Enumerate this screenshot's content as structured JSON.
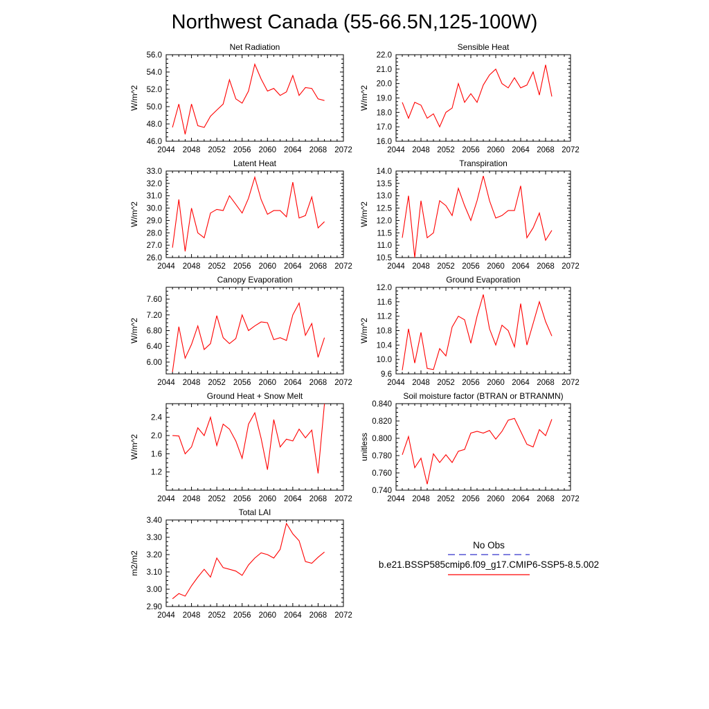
{
  "figure": {
    "title": "Northwest Canada (55-66.5N,125-100W)"
  },
  "legend": {
    "entries": [
      {
        "label": "No Obs",
        "color": "#3333cc",
        "dash": true
      },
      {
        "label": "b.e21.BSSP585cmip6.f09_g17.CMIP6-SSP5-8.5.002",
        "color": "#ff0000",
        "dash": false
      }
    ]
  },
  "chart_data": [
    {
      "type": "line",
      "title": "Net Radiation",
      "ylabel": "W/m^2",
      "xlim": [
        2044,
        2072
      ],
      "ylim": [
        46,
        56
      ],
      "xticks": [
        "2044",
        "2048",
        "2052",
        "2056",
        "2060",
        "2064",
        "2068",
        "2072"
      ],
      "yticks": [
        "46.0",
        "48.0",
        "50.0",
        "52.0",
        "54.0",
        "56.0"
      ],
      "x": [
        2045,
        2046,
        2047,
        2048,
        2049,
        2050,
        2051,
        2052,
        2053,
        2054,
        2055,
        2056,
        2057,
        2058,
        2059,
        2060,
        2061,
        2062,
        2063,
        2064,
        2065,
        2066,
        2067,
        2068,
        2069
      ],
      "series": [
        {
          "name": "b.e21.BSSP585cmip6.f09_g17.CMIP6-SSP5-8.5.002",
          "color": "#ff0000",
          "values": [
            47.6,
            50.3,
            46.8,
            50.3,
            47.8,
            47.6,
            48.9,
            49.6,
            50.3,
            53.1,
            50.9,
            50.4,
            51.8,
            54.9,
            53.2,
            51.8,
            52.1,
            51.3,
            51.7,
            53.6,
            51.3,
            52.2,
            52.1,
            50.9,
            50.7
          ]
        }
      ]
    },
    {
      "type": "line",
      "title": "Sensible Heat",
      "ylabel": "W/m^2",
      "xlim": [
        2044,
        2072
      ],
      "ylim": [
        16,
        22
      ],
      "xticks": [
        "2044",
        "2048",
        "2052",
        "2056",
        "2060",
        "2064",
        "2068",
        "2072"
      ],
      "yticks": [
        "16.0",
        "17.0",
        "18.0",
        "19.0",
        "20.0",
        "21.0",
        "22.0"
      ],
      "x": [
        2045,
        2046,
        2047,
        2048,
        2049,
        2050,
        2051,
        2052,
        2053,
        2054,
        2055,
        2056,
        2057,
        2058,
        2059,
        2060,
        2061,
        2062,
        2063,
        2064,
        2065,
        2066,
        2067,
        2068,
        2069
      ],
      "series": [
        {
          "name": "b.e21.BSSP585cmip6.f09_g17.CMIP6-SSP5-8.5.002",
          "color": "#ff0000",
          "values": [
            18.7,
            17.6,
            18.7,
            18.5,
            17.6,
            17.9,
            17.0,
            18.0,
            18.3,
            20.0,
            18.7,
            19.3,
            18.7,
            19.9,
            20.6,
            21.0,
            20.0,
            19.7,
            20.4,
            19.7,
            19.9,
            20.8,
            19.2,
            21.3,
            19.1
          ]
        }
      ]
    },
    {
      "type": "line",
      "title": "Latent Heat",
      "ylabel": "W/m^2",
      "xlim": [
        2044,
        2072
      ],
      "ylim": [
        26,
        33
      ],
      "xticks": [
        "2044",
        "2048",
        "2052",
        "2056",
        "2060",
        "2064",
        "2068",
        "2072"
      ],
      "yticks": [
        "26.0",
        "27.0",
        "28.0",
        "29.0",
        "30.0",
        "31.0",
        "32.0",
        "33.0"
      ],
      "x": [
        2045,
        2046,
        2047,
        2048,
        2049,
        2050,
        2051,
        2052,
        2053,
        2054,
        2055,
        2056,
        2057,
        2058,
        2059,
        2060,
        2061,
        2062,
        2063,
        2064,
        2065,
        2066,
        2067,
        2068,
        2069
      ],
      "series": [
        {
          "name": "b.e21.BSSP585cmip6.f09_g17.CMIP6-SSP5-8.5.002",
          "color": "#ff0000",
          "values": [
            26.8,
            30.7,
            26.5,
            30.0,
            28.0,
            27.6,
            29.6,
            29.9,
            29.8,
            31.0,
            30.3,
            29.6,
            30.8,
            32.5,
            30.7,
            29.5,
            29.8,
            29.8,
            29.3,
            32.1,
            29.2,
            29.4,
            30.9,
            28.4,
            28.9
          ]
        }
      ]
    },
    {
      "type": "line",
      "title": "Transpiration",
      "ylabel": "W/m^2",
      "xlim": [
        2044,
        2072
      ],
      "ylim": [
        10.5,
        14
      ],
      "xticks": [
        "2044",
        "2048",
        "2052",
        "2056",
        "2060",
        "2064",
        "2068",
        "2072"
      ],
      "yticks": [
        "10.5",
        "11.0",
        "11.5",
        "12.0",
        "12.5",
        "13.0",
        "13.5",
        "14.0"
      ],
      "x": [
        2045,
        2046,
        2047,
        2048,
        2049,
        2050,
        2051,
        2052,
        2053,
        2054,
        2055,
        2056,
        2057,
        2058,
        2059,
        2060,
        2061,
        2062,
        2063,
        2064,
        2065,
        2066,
        2067,
        2068,
        2069
      ],
      "series": [
        {
          "name": "b.e21.BSSP585cmip6.f09_g17.CMIP6-SSP5-8.5.002",
          "color": "#ff0000",
          "values": [
            11.3,
            13.0,
            10.5,
            12.8,
            11.3,
            11.5,
            12.8,
            12.6,
            12.2,
            13.3,
            12.6,
            12.0,
            12.8,
            13.8,
            12.8,
            12.1,
            12.2,
            12.4,
            12.4,
            13.4,
            11.3,
            11.7,
            12.3,
            11.2,
            11.6
          ]
        }
      ]
    },
    {
      "type": "line",
      "title": "Canopy Evaporation",
      "ylabel": "W/m^2",
      "xlim": [
        2044,
        2072
      ],
      "ylim": [
        5.7,
        7.9
      ],
      "xticks": [
        "2044",
        "2048",
        "2052",
        "2056",
        "2060",
        "2064",
        "2068",
        "2072"
      ],
      "yticks": [
        "6.00",
        "6.40",
        "6.80",
        "7.20",
        "7.60"
      ],
      "ytick_values": [
        6.0,
        6.4,
        6.8,
        7.2,
        7.6
      ],
      "x": [
        2045,
        2046,
        2047,
        2048,
        2049,
        2050,
        2051,
        2052,
        2053,
        2054,
        2055,
        2056,
        2057,
        2058,
        2059,
        2060,
        2061,
        2062,
        2063,
        2064,
        2065,
        2066,
        2067,
        2068,
        2069
      ],
      "series": [
        {
          "name": "b.e21.BSSP585cmip6.f09_g17.CMIP6-SSP5-8.5.002",
          "color": "#ff0000",
          "values": [
            5.75,
            6.9,
            6.1,
            6.45,
            6.92,
            6.32,
            6.47,
            7.18,
            6.62,
            6.47,
            6.6,
            7.2,
            6.8,
            6.92,
            7.02,
            7.0,
            6.57,
            6.62,
            6.55,
            7.2,
            7.5,
            6.68,
            6.98,
            6.12,
            6.62
          ]
        }
      ]
    },
    {
      "type": "line",
      "title": "Ground Evaporation",
      "ylabel": "W/m^2",
      "xlim": [
        2044,
        2072
      ],
      "ylim": [
        9.6,
        12
      ],
      "xticks": [
        "2044",
        "2048",
        "2052",
        "2056",
        "2060",
        "2064",
        "2068",
        "2072"
      ],
      "yticks": [
        "9.6",
        "10.0",
        "10.4",
        "10.8",
        "11.2",
        "11.6",
        "12.0"
      ],
      "x": [
        2045,
        2046,
        2047,
        2048,
        2049,
        2050,
        2051,
        2052,
        2053,
        2054,
        2055,
        2056,
        2057,
        2058,
        2059,
        2060,
        2061,
        2062,
        2063,
        2064,
        2065,
        2066,
        2067,
        2068,
        2069
      ],
      "series": [
        {
          "name": "b.e21.BSSP585cmip6.f09_g17.CMIP6-SSP5-8.5.002",
          "color": "#ff0000",
          "values": [
            9.7,
            10.85,
            9.9,
            10.75,
            9.75,
            9.72,
            10.3,
            10.1,
            10.9,
            11.2,
            11.1,
            10.45,
            11.2,
            11.8,
            10.85,
            10.4,
            10.95,
            10.8,
            10.35,
            11.55,
            10.4,
            11.0,
            11.6,
            11.05,
            10.65
          ]
        }
      ]
    },
    {
      "type": "line",
      "title": "Ground Heat + Snow Melt",
      "ylabel": "W/m^2",
      "xlim": [
        2044,
        2072
      ],
      "ylim": [
        0.8,
        2.7
      ],
      "xticks": [
        "2044",
        "2048",
        "2052",
        "2056",
        "2060",
        "2064",
        "2068",
        "2072"
      ],
      "yticks": [
        "1.2",
        "1.6",
        "2.0",
        "2.4"
      ],
      "ytick_values": [
        1.2,
        1.6,
        2.0,
        2.4
      ],
      "x": [
        2045,
        2046,
        2047,
        2048,
        2049,
        2050,
        2051,
        2052,
        2053,
        2054,
        2055,
        2056,
        2057,
        2058,
        2059,
        2060,
        2061,
        2062,
        2063,
        2064,
        2065,
        2066,
        2067,
        2068,
        2069
      ],
      "series": [
        {
          "name": "b.e21.BSSP585cmip6.f09_g17.CMIP6-SSP5-8.5.002",
          "color": "#ff0000",
          "values": [
            2.0,
            1.99,
            1.6,
            1.75,
            2.17,
            2.0,
            2.4,
            1.78,
            2.25,
            2.14,
            1.88,
            1.5,
            2.25,
            2.5,
            1.94,
            1.25,
            2.35,
            1.75,
            1.92,
            1.88,
            2.14,
            1.95,
            2.12,
            1.17,
            2.7
          ]
        }
      ]
    },
    {
      "type": "line",
      "title": "Soil moisture factor (BTRAN or BTRANMN)",
      "ylabel": "unitless",
      "xlim": [
        2044,
        2072
      ],
      "ylim": [
        0.74,
        0.84
      ],
      "xticks": [
        "2044",
        "2048",
        "2052",
        "2056",
        "2060",
        "2064",
        "2068",
        "2072"
      ],
      "yticks": [
        "0.740",
        "0.760",
        "0.780",
        "0.800",
        "0.820",
        "0.840"
      ],
      "x": [
        2045,
        2046,
        2047,
        2048,
        2049,
        2050,
        2051,
        2052,
        2053,
        2054,
        2055,
        2056,
        2057,
        2058,
        2059,
        2060,
        2061,
        2062,
        2063,
        2064,
        2065,
        2066,
        2067,
        2068,
        2069
      ],
      "series": [
        {
          "name": "b.e21.BSSP585cmip6.f09_g17.CMIP6-SSP5-8.5.002",
          "color": "#ff0000",
          "values": [
            0.781,
            0.802,
            0.766,
            0.777,
            0.747,
            0.782,
            0.772,
            0.781,
            0.772,
            0.785,
            0.787,
            0.806,
            0.808,
            0.806,
            0.809,
            0.799,
            0.808,
            0.821,
            0.823,
            0.808,
            0.793,
            0.79,
            0.81,
            0.803,
            0.822
          ]
        }
      ]
    },
    {
      "type": "line",
      "title": "Total LAI",
      "ylabel": "m2/m2",
      "xlim": [
        2044,
        2072
      ],
      "ylim": [
        2.9,
        3.4
      ],
      "xticks": [
        "2044",
        "2048",
        "2052",
        "2056",
        "2060",
        "2064",
        "2068",
        "2072"
      ],
      "yticks": [
        "2.90",
        "3.00",
        "3.10",
        "3.20",
        "3.30",
        "3.40"
      ],
      "x": [
        2045,
        2046,
        2047,
        2048,
        2049,
        2050,
        2051,
        2052,
        2053,
        2054,
        2055,
        2056,
        2057,
        2058,
        2059,
        2060,
        2061,
        2062,
        2063,
        2064,
        2065,
        2066,
        2067,
        2068,
        2069
      ],
      "series": [
        {
          "name": "b.e21.BSSP585cmip6.f09_g17.CMIP6-SSP5-8.5.002",
          "color": "#ff0000",
          "values": [
            2.945,
            2.975,
            2.96,
            3.02,
            3.07,
            3.115,
            3.07,
            3.18,
            3.125,
            3.115,
            3.105,
            3.08,
            3.14,
            3.18,
            3.21,
            3.2,
            3.18,
            3.23,
            3.38,
            3.32,
            3.28,
            3.16,
            3.15,
            3.185,
            3.215
          ]
        }
      ]
    }
  ]
}
